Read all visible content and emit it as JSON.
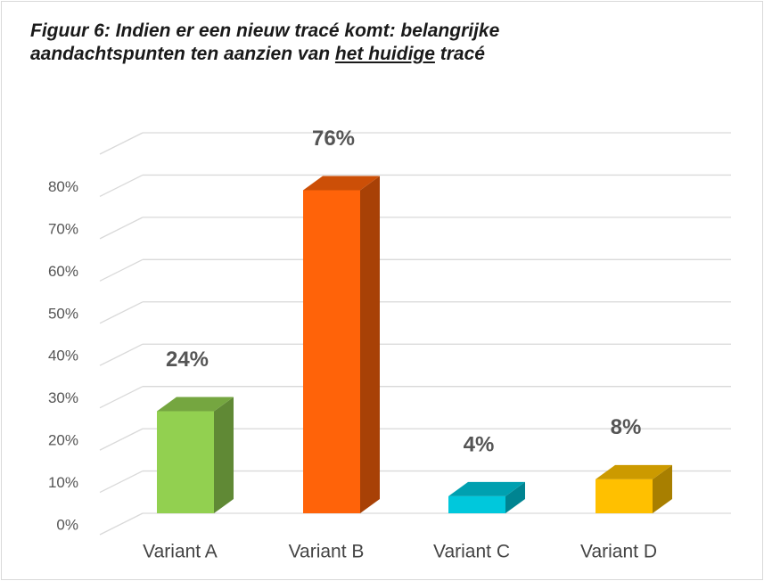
{
  "chart_data": {
    "type": "bar3d",
    "title": [
      "Figuur 6: Indien er een nieuw tracé komt: belangrijke aandachtspunten ten aanzien van",
      "het huidige",
      "tracé"
    ],
    "categories": [
      "Variant A",
      "Variant B",
      "Variant C",
      "Variant D"
    ],
    "values": [
      24,
      76,
      4,
      8
    ],
    "value_labels": [
      "24%",
      "76%",
      "4%",
      "8%"
    ],
    "colors": [
      "#92d050",
      "#ff6309",
      "#00c8dc",
      "#ffc000"
    ],
    "ylim": [
      0,
      90
    ],
    "yticks": [
      {
        "value": 0,
        "label": "0%"
      },
      {
        "value": 10,
        "label": "10%"
      },
      {
        "value": 20,
        "label": "20%"
      },
      {
        "value": 30,
        "label": "30%"
      },
      {
        "value": 40,
        "label": "40%"
      },
      {
        "value": 50,
        "label": "50%"
      },
      {
        "value": 60,
        "label": "60%"
      },
      {
        "value": 70,
        "label": "70%"
      },
      {
        "value": 80,
        "label": "80%"
      }
    ],
    "grid": true
  }
}
